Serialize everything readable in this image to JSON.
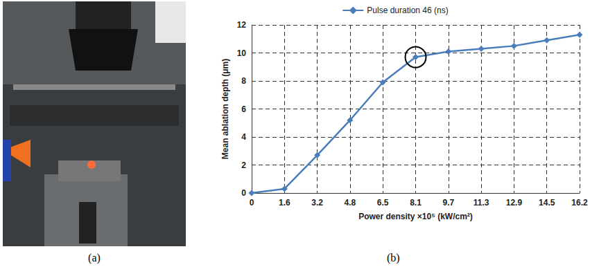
{
  "figure": {
    "panel_labels": [
      "(a)",
      "(b)"
    ]
  },
  "chart_data": {
    "type": "line",
    "x_label": "Power density ×10⁵ (kW/cm²)",
    "y_label": "Mean ablation depth (μm)",
    "categories": [
      "0",
      "1.6",
      "3.2",
      "4.8",
      "6.5",
      "8.1",
      "9.7",
      "11.3",
      "12.9",
      "14.5",
      "16.2"
    ],
    "series": [
      {
        "name": "Pulse duration 46 (ns)",
        "color": "#4a7ebb",
        "marker": "diamond",
        "values": [
          0,
          0.3,
          2.7,
          5.2,
          7.9,
          9.7,
          10.1,
          10.3,
          10.5,
          10.9,
          11.3
        ]
      }
    ],
    "ylim": [
      0,
      12
    ],
    "yticks": [
      0,
      2,
      4,
      6,
      8,
      10,
      12
    ],
    "grid": true,
    "legend": "top"
  }
}
